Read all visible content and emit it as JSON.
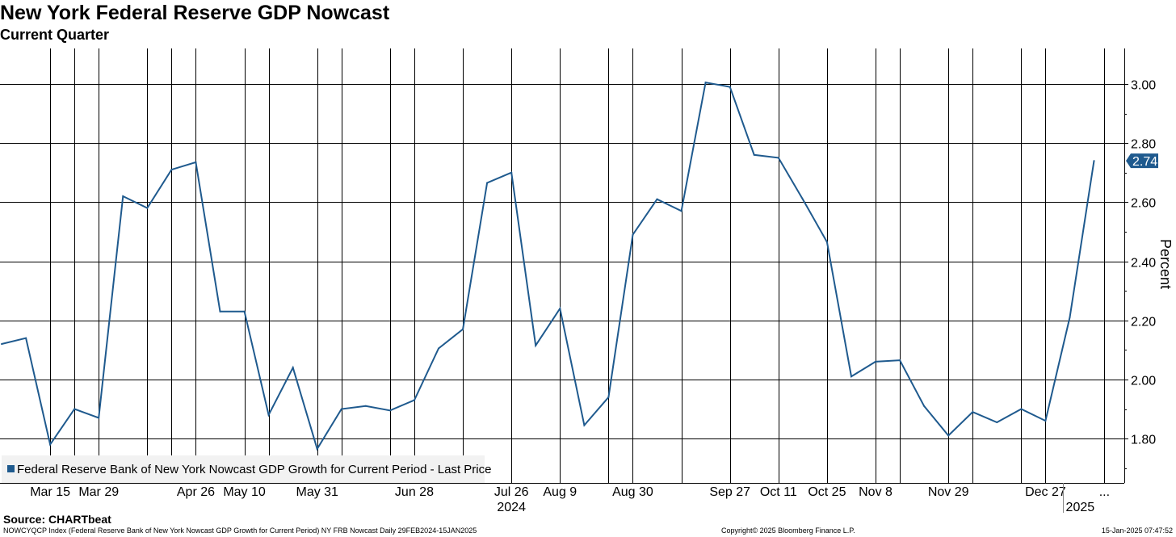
{
  "title": "New York Federal Reserve GDP Nowcast",
  "subtitle": "Current Quarter",
  "source": "Source: CHARTbeat",
  "footer": {
    "left": "NOWCYQCP Index (Federal Reserve Bank of New York Nowcast GDP Growth for Current Period) NY FRB Nowcast  Daily 29FEB2024-15JAN2025",
    "middle": "Copyright© 2025 Bloomberg Finance L.P.",
    "right": "15-Jan-2025 07:47:52"
  },
  "chart_data": {
    "type": "line",
    "ylabel": "Percent",
    "ylim": [
      1.65,
      3.12
    ],
    "yticks": [
      1.8,
      2.0,
      2.2,
      2.4,
      2.6,
      2.8,
      3.0
    ],
    "ytick_labels": [
      "1.80",
      "2.00",
      "2.20",
      "2.40",
      "2.60",
      "2.80",
      "3.00"
    ],
    "grid": true,
    "legend": {
      "label": "Federal Reserve Bank of New York Nowcast GDP Growth for Current Period - Last Price",
      "position": "bottom-left",
      "color": "#1f5a8e"
    },
    "line_color": "#1f5a8e",
    "last_value_label": "2.74",
    "xlim": [
      "2024-03-01",
      "2025-01-15"
    ],
    "xtick_labels": [
      {
        "date": "2024-03-15",
        "label": "Mar 15"
      },
      {
        "date": "2024-03-29",
        "label": "Mar 29"
      },
      {
        "date": "2024-04-26",
        "label": "Apr 26"
      },
      {
        "date": "2024-05-10",
        "label": "May 10"
      },
      {
        "date": "2024-05-31",
        "label": "May 31"
      },
      {
        "date": "2024-06-28",
        "label": "Jun 28"
      },
      {
        "date": "2024-07-26",
        "label": "Jul 26"
      },
      {
        "date": "2024-08-09",
        "label": "Aug 9"
      },
      {
        "date": "2024-08-30",
        "label": "Aug 30"
      },
      {
        "date": "2024-09-27",
        "label": "Sep 27"
      },
      {
        "date": "2024-10-11",
        "label": "Oct 11"
      },
      {
        "date": "2024-10-25",
        "label": "Oct 25"
      },
      {
        "date": "2024-11-08",
        "label": "Nov 8"
      },
      {
        "date": "2024-11-29",
        "label": "Nov 29"
      },
      {
        "date": "2024-12-27",
        "label": "Dec 27"
      },
      {
        "date": "2025-01-13",
        "label": "..."
      }
    ],
    "year_labels": [
      {
        "date": "2024-07-26",
        "label": "2024"
      },
      {
        "date": "2025-01-06",
        "label": "2025"
      }
    ],
    "gridline_dates": [
      "2024-03-15",
      "2024-03-22",
      "2024-03-29",
      "2024-04-12",
      "2024-04-19",
      "2024-04-26",
      "2024-05-10",
      "2024-05-17",
      "2024-05-31",
      "2024-06-07",
      "2024-06-21",
      "2024-06-28",
      "2024-07-12",
      "2024-07-26",
      "2024-08-09",
      "2024-08-23",
      "2024-08-30",
      "2024-09-13",
      "2024-09-27",
      "2024-10-11",
      "2024-10-25",
      "2024-11-08",
      "2024-11-15",
      "2024-11-29",
      "2024-12-06",
      "2024-12-20",
      "2024-12-27",
      "2025-01-13"
    ],
    "series": [
      {
        "values": [
          {
            "x": "2024-03-01",
            "y": 2.12
          },
          {
            "x": "2024-03-08",
            "y": 2.14
          },
          {
            "x": "2024-03-15",
            "y": 1.78
          },
          {
            "x": "2024-03-22",
            "y": 1.9
          },
          {
            "x": "2024-03-29",
            "y": 1.87
          },
          {
            "x": "2024-04-05",
            "y": 2.62
          },
          {
            "x": "2024-04-12",
            "y": 2.58
          },
          {
            "x": "2024-04-19",
            "y": 2.71
          },
          {
            "x": "2024-04-26",
            "y": 2.735
          },
          {
            "x": "2024-05-03",
            "y": 2.23
          },
          {
            "x": "2024-05-10",
            "y": 2.23
          },
          {
            "x": "2024-05-17",
            "y": 1.88
          },
          {
            "x": "2024-05-24",
            "y": 2.04
          },
          {
            "x": "2024-05-31",
            "y": 1.765
          },
          {
            "x": "2024-06-07",
            "y": 1.9
          },
          {
            "x": "2024-06-14",
            "y": 1.91
          },
          {
            "x": "2024-06-21",
            "y": 1.895
          },
          {
            "x": "2024-06-28",
            "y": 1.93
          },
          {
            "x": "2024-07-05",
            "y": 2.105
          },
          {
            "x": "2024-07-12",
            "y": 2.17
          },
          {
            "x": "2024-07-19",
            "y": 2.665
          },
          {
            "x": "2024-07-26",
            "y": 2.7
          },
          {
            "x": "2024-08-02",
            "y": 2.115
          },
          {
            "x": "2024-08-09",
            "y": 2.24
          },
          {
            "x": "2024-08-16",
            "y": 1.845
          },
          {
            "x": "2024-08-23",
            "y": 1.94
          },
          {
            "x": "2024-08-30",
            "y": 2.49
          },
          {
            "x": "2024-09-06",
            "y": 2.61
          },
          {
            "x": "2024-09-13",
            "y": 2.57
          },
          {
            "x": "2024-09-20",
            "y": 3.005
          },
          {
            "x": "2024-09-27",
            "y": 2.99
          },
          {
            "x": "2024-10-04",
            "y": 2.76
          },
          {
            "x": "2024-10-11",
            "y": 2.75
          },
          {
            "x": "2024-10-18",
            "y": 2.61
          },
          {
            "x": "2024-10-25",
            "y": 2.465
          },
          {
            "x": "2024-11-01",
            "y": 2.01
          },
          {
            "x": "2024-11-08",
            "y": 2.06
          },
          {
            "x": "2024-11-15",
            "y": 2.065
          },
          {
            "x": "2024-11-22",
            "y": 1.91
          },
          {
            "x": "2024-11-29",
            "y": 1.81
          },
          {
            "x": "2024-12-06",
            "y": 1.89
          },
          {
            "x": "2024-12-13",
            "y": 1.855
          },
          {
            "x": "2024-12-20",
            "y": 1.9
          },
          {
            "x": "2024-12-27",
            "y": 1.86
          },
          {
            "x": "2025-01-03",
            "y": 2.21
          },
          {
            "x": "2025-01-10",
            "y": 2.74
          }
        ]
      }
    ]
  }
}
